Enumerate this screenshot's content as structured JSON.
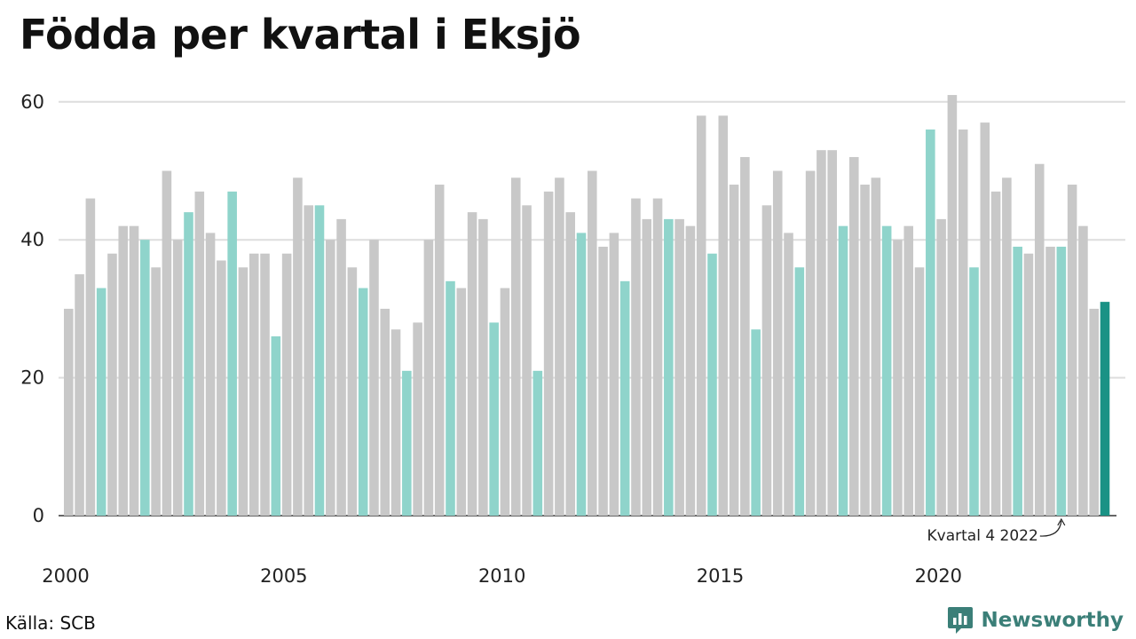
{
  "title": "Födda per kvartal i Eksjö",
  "source": "Källa: SCB",
  "brand": {
    "name": "Newsworthy",
    "icon": "newsworthy-logo-icon",
    "color": "#3b7f78"
  },
  "colors": {
    "default": "#c8c8c8",
    "q4": "#8fd4cb",
    "latest": "#1a9285",
    "grid": "#dddddd",
    "axis": "#333333"
  },
  "chart_data": {
    "type": "bar",
    "title": "Födda per kvartal i Eksjö",
    "xlabel": "",
    "ylabel": "",
    "ylim": [
      0,
      65
    ],
    "yticks": [
      0,
      20,
      40,
      60
    ],
    "xticks": [
      "2000",
      "2005",
      "2010",
      "2015",
      "2020"
    ],
    "grid": true,
    "legend": "none",
    "start": "2000 Q1",
    "annotation": {
      "text": "Kvartal 4 2022",
      "year": 2022,
      "quarter": 4
    },
    "values": [
      30,
      35,
      46,
      33,
      38,
      42,
      42,
      40,
      36,
      50,
      40,
      44,
      47,
      41,
      37,
      47,
      36,
      38,
      38,
      26,
      38,
      49,
      45,
      45,
      40,
      43,
      36,
      33,
      40,
      30,
      27,
      21,
      28,
      40,
      48,
      34,
      33,
      44,
      43,
      28,
      33,
      49,
      45,
      21,
      47,
      49,
      44,
      41,
      50,
      39,
      41,
      34,
      46,
      43,
      46,
      43,
      43,
      42,
      58,
      38,
      58,
      48,
      52,
      27,
      45,
      50,
      41,
      36,
      50,
      53,
      53,
      42,
      52,
      48,
      49,
      42,
      40,
      42,
      36,
      56,
      43,
      61,
      56,
      36,
      57,
      47,
      49,
      39,
      38,
      51,
      39,
      39,
      48,
      42,
      30,
      31
    ]
  }
}
